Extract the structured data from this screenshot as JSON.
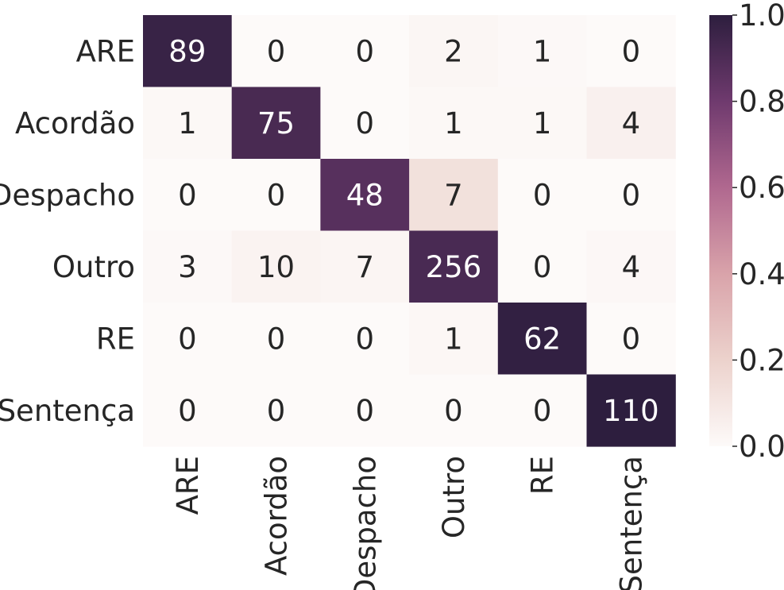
{
  "chart_data": {
    "type": "heatmap",
    "title": "",
    "xlabel": "",
    "ylabel": "",
    "x_categories": [
      "ARE",
      "Acordão",
      "Despacho",
      "Outro",
      "RE",
      "Sentença"
    ],
    "y_categories": [
      "ARE",
      "Acordão",
      "Despacho",
      "Outro",
      "RE",
      "Sentença"
    ],
    "values": [
      [
        89,
        0,
        0,
        2,
        1,
        0
      ],
      [
        1,
        75,
        0,
        1,
        1,
        4
      ],
      [
        0,
        0,
        48,
        7,
        0,
        0
      ],
      [
        3,
        10,
        7,
        256,
        0,
        4
      ],
      [
        0,
        0,
        0,
        1,
        62,
        0
      ],
      [
        0,
        0,
        0,
        0,
        0,
        110
      ]
    ],
    "color_scale": {
      "min": 0.0,
      "max": 1.0,
      "ticks": [
        "0.0",
        "0.2",
        "0.4",
        "0.6",
        "0.8",
        "1.0"
      ],
      "normalization": "row",
      "colors": [
        "#fdfaf9",
        "#e8c6c0",
        "#c07a96",
        "#81457a",
        "#2d1e3e"
      ]
    },
    "grid": false,
    "legend": "colorbar-right"
  }
}
